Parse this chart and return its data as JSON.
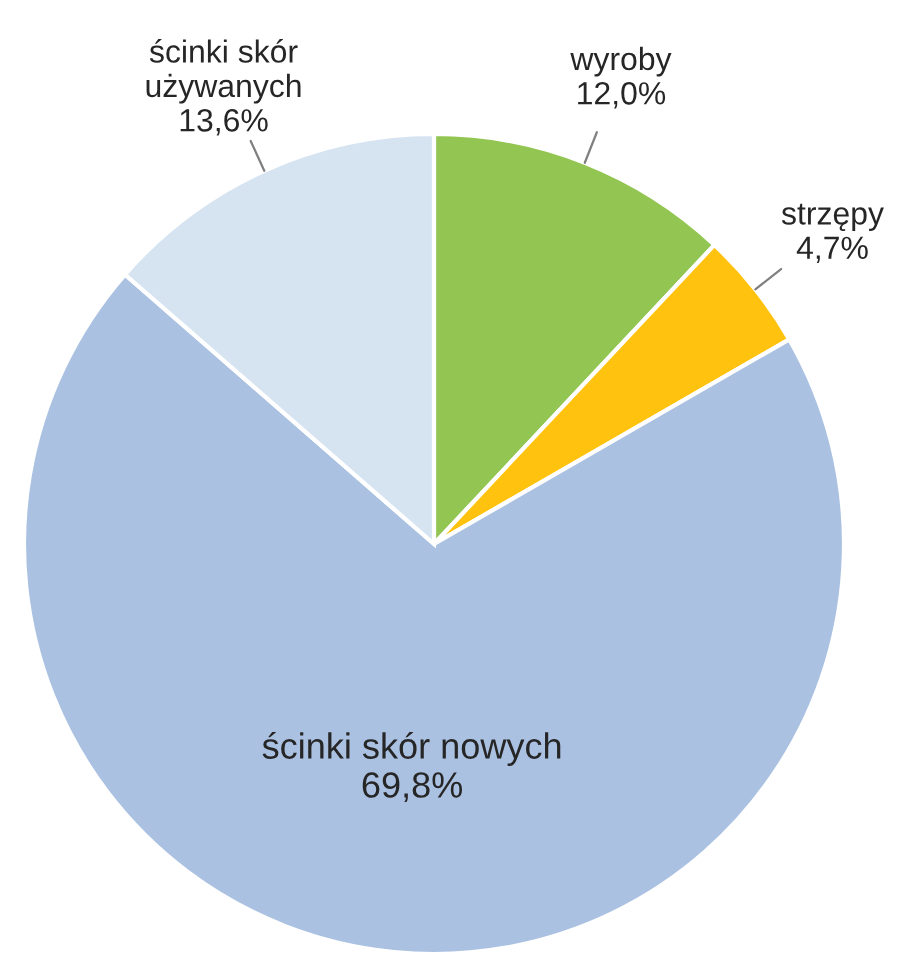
{
  "chart_data": {
    "type": "pie",
    "categories": [
      "wyroby",
      "strzępy",
      "ścinki skór nowych",
      "ścinki skór\nużywanych"
    ],
    "values": [
      12.0,
      4.7,
      69.8,
      13.6
    ],
    "value_labels": [
      "12,0%",
      "4,7%",
      "69,8%",
      "13,6%"
    ],
    "colors": [
      "#92c551",
      "#ffc20e",
      "#aac1e2",
      "#d6e4f2"
    ],
    "legend": false
  }
}
